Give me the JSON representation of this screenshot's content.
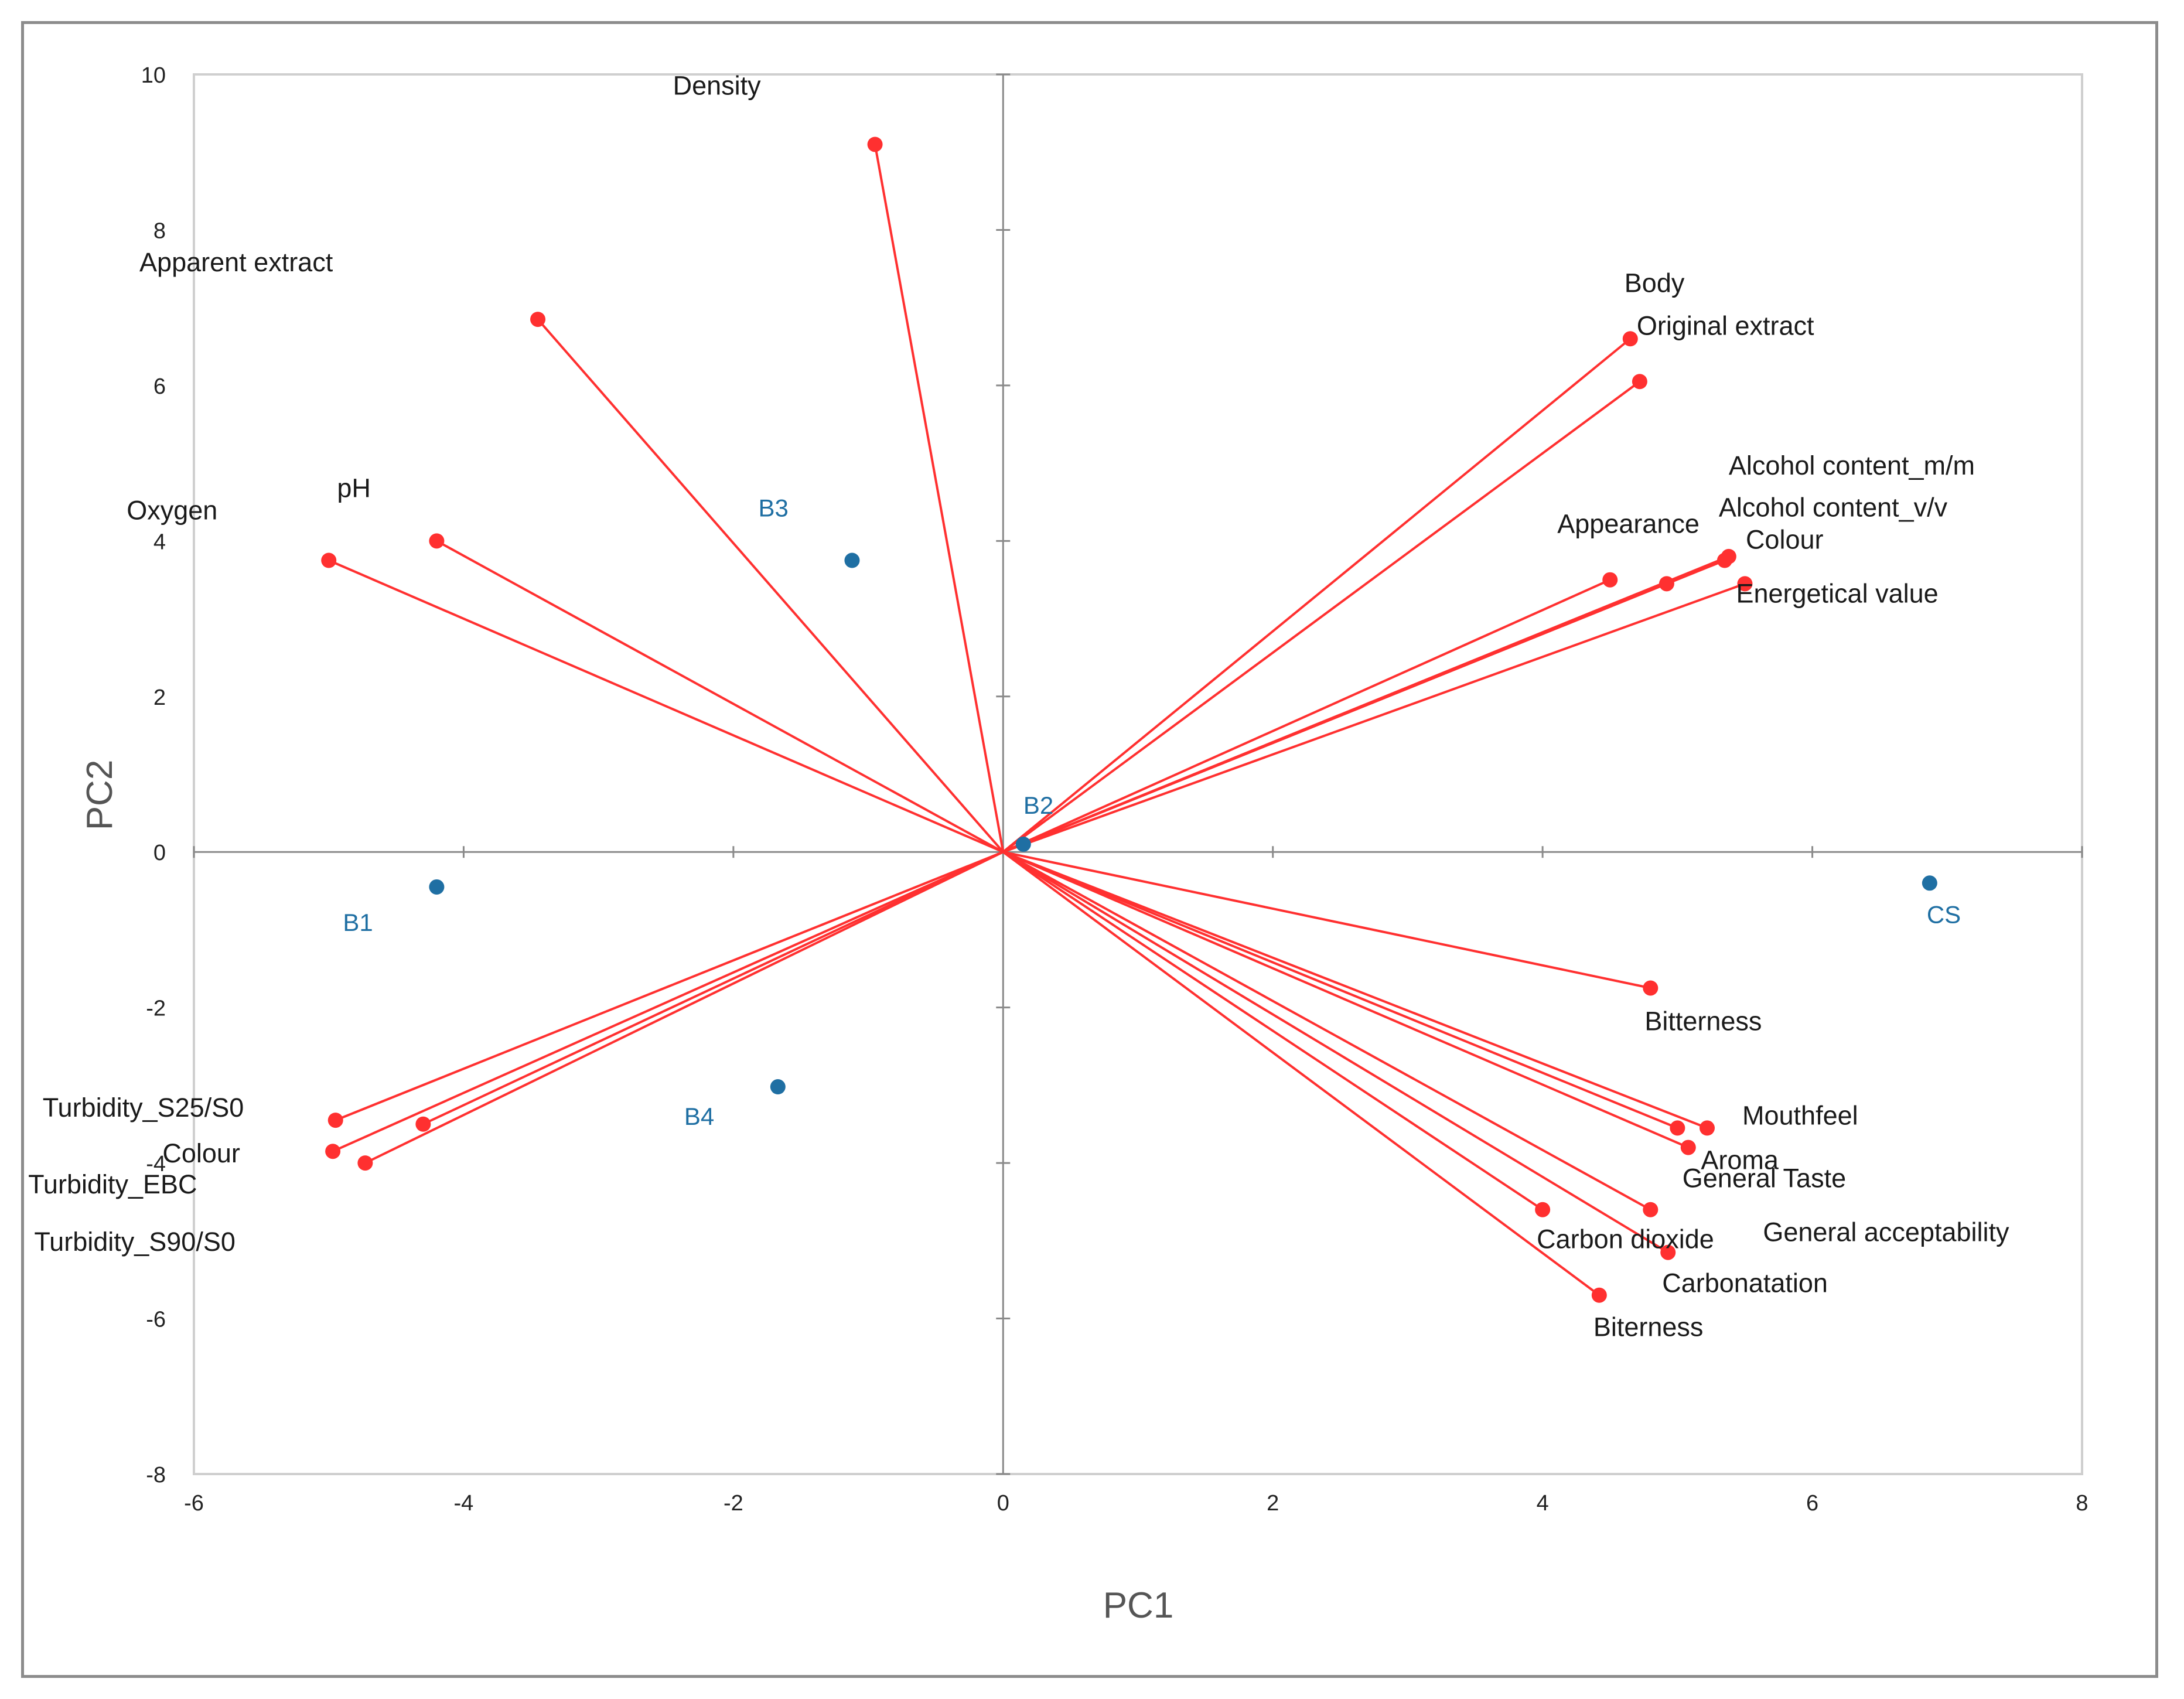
{
  "chart_data": {
    "type": "scatter",
    "subtype": "pca-biplot",
    "title": "",
    "xlabel": "PC1",
    "ylabel": "PC2",
    "xlim": [
      -6,
      8
    ],
    "ylim": [
      -8,
      10
    ],
    "xticks": [
      "-6",
      "-4",
      "-2",
      "0",
      "2",
      "4",
      "6",
      "8"
    ],
    "yticks": [
      "-8",
      "-6",
      "-4",
      "-2",
      "0",
      "2",
      "4",
      "6",
      "8",
      "10"
    ],
    "grid": false,
    "legend": "none",
    "vector_color": "#ff3030",
    "point_color": "#1f6fa3",
    "variables": [
      {
        "name": "Density",
        "x": -0.95,
        "y": 9.1
      },
      {
        "name": "Apparent extract",
        "x": -3.45,
        "y": 6.85
      },
      {
        "name": "pH",
        "x": -4.2,
        "y": 4.0
      },
      {
        "name": "Oxygen",
        "x": -5.0,
        "y": 3.75
      },
      {
        "name": "Body",
        "x": 4.65,
        "y": 6.6
      },
      {
        "name": "Original extract",
        "x": 4.72,
        "y": 6.05
      },
      {
        "name": "Alcohol content_m/m",
        "x": 5.38,
        "y": 3.8
      },
      {
        "name": "Alcohol content_v/v",
        "x": 5.35,
        "y": 3.75
      },
      {
        "name": "Appearance",
        "x": 4.5,
        "y": 3.5
      },
      {
        "name": "Colour",
        "x": 4.92,
        "y": 3.45
      },
      {
        "name": "Energetical value",
        "x": 5.5,
        "y": 3.45
      },
      {
        "name": "Bitterness",
        "x": 4.8,
        "y": -1.75
      },
      {
        "name": "Mouthfeel",
        "x": 5.22,
        "y": -3.55
      },
      {
        "name": "Aroma",
        "x": 5.0,
        "y": -3.55
      },
      {
        "name": "General Taste",
        "x": 5.08,
        "y": -3.8
      },
      {
        "name": "General acceptability",
        "x": 4.8,
        "y": -4.6
      },
      {
        "name": "Carbon dioxide",
        "x": 4.0,
        "y": -4.6
      },
      {
        "name": "Carbonatation",
        "x": 4.93,
        "y": -5.15
      },
      {
        "name": "Biterness",
        "x": 4.42,
        "y": -5.7
      },
      {
        "name": "Turbidity_S25/S0",
        "x": -4.95,
        "y": -3.45
      },
      {
        "name": "Colour",
        "x": -4.3,
        "y": -3.5
      },
      {
        "name": "Turbidity_EBC",
        "x": -4.97,
        "y": -3.85
      },
      {
        "name": "Turbidity_S90/S0",
        "x": -4.73,
        "y": -4.0
      }
    ],
    "observations": [
      {
        "name": "B1",
        "x": -4.2,
        "y": -0.45
      },
      {
        "name": "B2",
        "x": 0.15,
        "y": 0.1
      },
      {
        "name": "B3",
        "x": -1.12,
        "y": 3.75
      },
      {
        "name": "B4",
        "x": -1.67,
        "y": -3.02
      },
      {
        "name": "CS",
        "x": 6.87,
        "y": -0.4
      }
    ]
  }
}
